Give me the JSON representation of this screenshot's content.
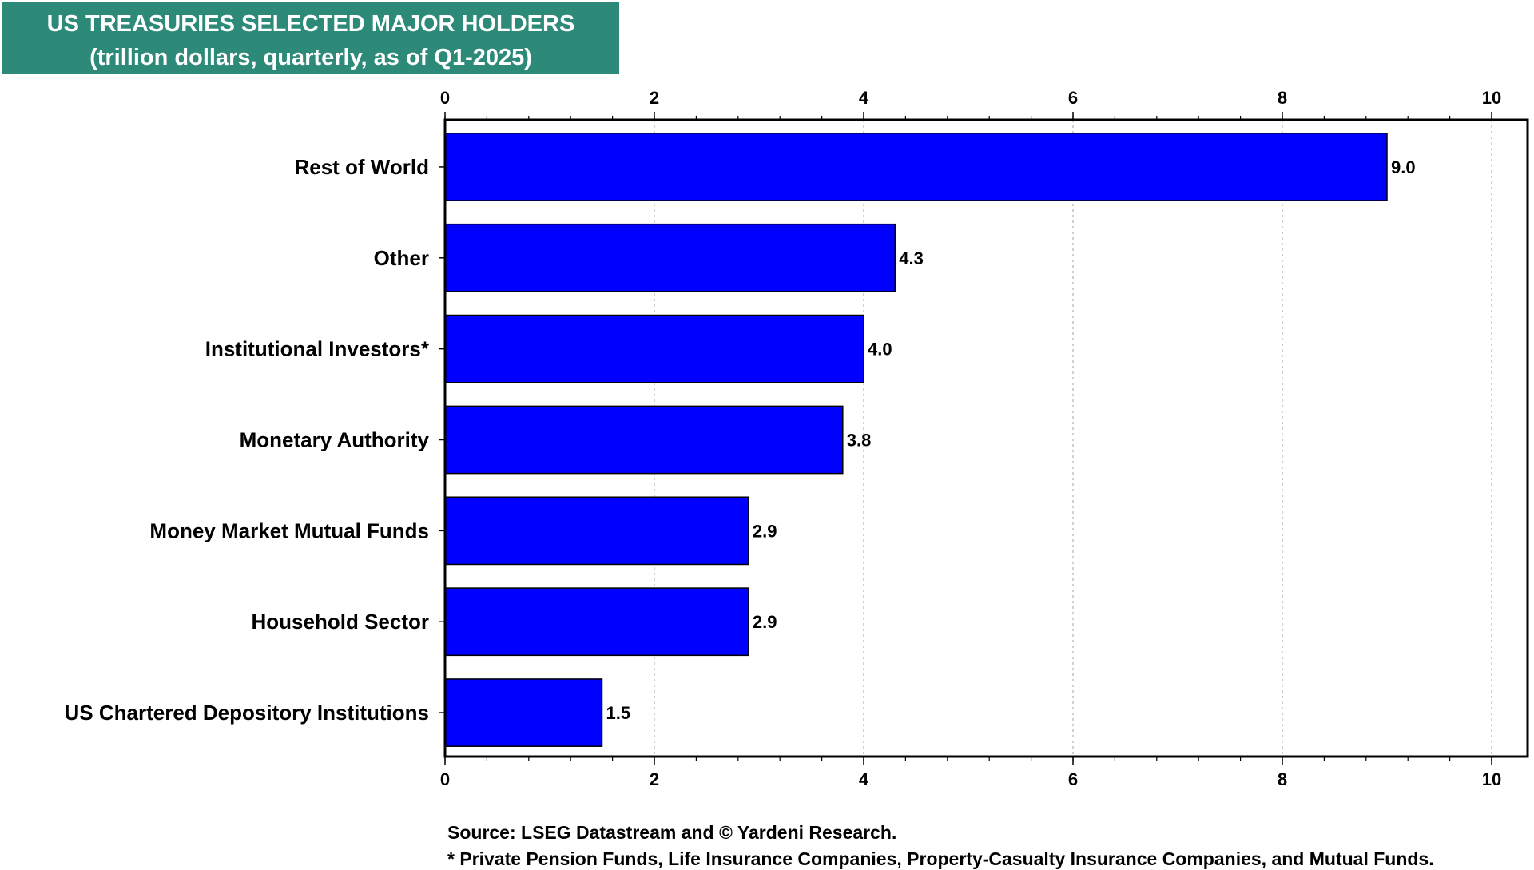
{
  "chart_data": {
    "type": "bar",
    "orientation": "horizontal",
    "title": "US TREASURIES SELECTED MAJOR HOLDERS",
    "subtitle": "(trillion dollars, quarterly, as of Q1-2025)",
    "categories": [
      "Rest of World",
      "Other",
      "Institutional Investors*",
      "Monetary Authority",
      "Money Market Mutual Funds",
      "Household Sector",
      "US Chartered Depository Institutions"
    ],
    "values": [
      9.0,
      4.3,
      4.0,
      3.8,
      2.9,
      2.9,
      1.5
    ],
    "value_labels": [
      "9.0",
      "4.3",
      "4.0",
      "3.8",
      "2.9",
      "2.9",
      "1.5"
    ],
    "xlim": [
      0,
      10
    ],
    "x_ticks": [
      0,
      2,
      4,
      6,
      8,
      10
    ],
    "x_minor_step": 0.4,
    "grid": true,
    "bar_color": "#0000ff",
    "title_bg_color": "#2e8a78",
    "xlabel": "",
    "ylabel": ""
  },
  "footnotes": {
    "source": "Source: LSEG Datastream and © Yardeni Research.",
    "note": "* Private Pension Funds, Life Insurance Companies, Property-Casualty Insurance Companies, and Mutual Funds."
  }
}
